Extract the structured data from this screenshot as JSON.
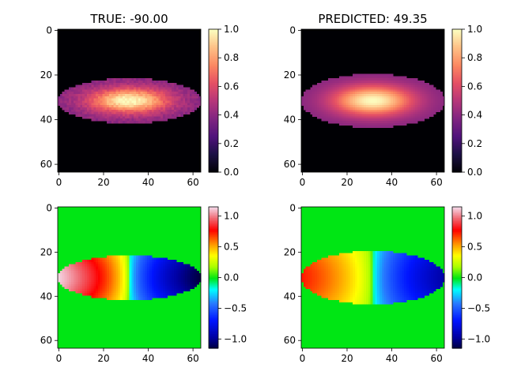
{
  "chart_data": [
    {
      "type": "heatmap",
      "title": "TRUE: -90.00",
      "colormap": "magma",
      "grid_size": 64,
      "x_ticks": [
        0,
        20,
        40,
        60
      ],
      "y_ticks": [
        0,
        20,
        40,
        60
      ],
      "colorbar_ticks": [
        0.0,
        0.2,
        0.4,
        0.6,
        0.8,
        1.0
      ],
      "value_range": [
        0,
        1
      ],
      "ellipse": {
        "center": [
          32,
          32
        ],
        "semi_axis_x": 32,
        "semi_axis_y": 10,
        "edge_value": 0.38,
        "peak_value": 1.0
      },
      "noisy": true
    },
    {
      "type": "heatmap",
      "title": "PREDICTED: 49.35",
      "colormap": "magma",
      "grid_size": 64,
      "x_ticks": [
        0,
        20,
        40,
        60
      ],
      "y_ticks": [
        0,
        20,
        40,
        60
      ],
      "colorbar_ticks": [
        0.0,
        0.2,
        0.4,
        0.6,
        0.8,
        1.0
      ],
      "value_range": [
        0,
        1
      ],
      "ellipse": {
        "center": [
          32,
          32
        ],
        "semi_axis_x": 32,
        "semi_axis_y": 12,
        "edge_value": 0.38,
        "peak_value": 1.0
      },
      "noisy": false
    },
    {
      "type": "heatmap",
      "title": "",
      "colormap": "gist_ncar-like",
      "grid_size": 64,
      "x_ticks": [
        0,
        20,
        40,
        60
      ],
      "y_ticks": [
        0,
        20,
        40,
        60
      ],
      "colorbar_ticks": [
        1.0,
        0.5,
        0.0,
        -0.5,
        -1.0
      ],
      "colorbar_tick_labels": [
        "1.0",
        "0.5",
        "0.0",
        "−0.5",
        "−1.0"
      ],
      "value_range": [
        -1.15,
        1.15
      ],
      "background_value": 0.0,
      "ellipse": {
        "center": [
          32,
          32
        ],
        "semi_axis_x": 32,
        "semi_axis_y": 10,
        "left_peak": 1.15,
        "right_peak": -1.15
      }
    },
    {
      "type": "heatmap",
      "title": "",
      "colormap": "gist_ncar-like",
      "grid_size": 64,
      "x_ticks": [
        0,
        20,
        40,
        60
      ],
      "y_ticks": [
        0,
        20,
        40,
        60
      ],
      "colorbar_ticks": [
        1.0,
        0.5,
        0.0,
        -0.5,
        -1.0
      ],
      "colorbar_tick_labels": [
        "1.0",
        "0.5",
        "0.0",
        "−0.5",
        "−1.0"
      ],
      "value_range": [
        -1.15,
        1.15
      ],
      "background_value": 0.0,
      "ellipse": {
        "center": [
          32,
          32
        ],
        "semi_axis_x": 32,
        "semi_axis_y": 12,
        "left_peak": 0.75,
        "right_peak": -0.95
      }
    }
  ]
}
